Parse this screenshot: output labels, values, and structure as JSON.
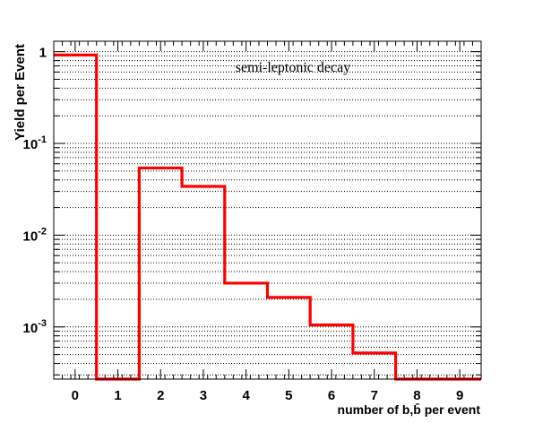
{
  "chart_data": {
    "type": "histogram",
    "title": "",
    "annotation": "semi-leptonic decay",
    "xlabel": "number of b,b̄ per event",
    "ylabel": "Yield per Event",
    "xlim": [
      -0.5,
      9.5
    ],
    "ylim": [
      0.00027,
      1.3
    ],
    "yscale": "log",
    "grid": "horizontal dotted",
    "x_ticks": [
      "0",
      "1",
      "2",
      "3",
      "4",
      "5",
      "6",
      "7",
      "8",
      "9"
    ],
    "y_ticks": [
      {
        "value": 1,
        "base": "1",
        "exp": ""
      },
      {
        "value": 0.1,
        "base": "10",
        "exp": "-1"
      },
      {
        "value": 0.01,
        "base": "10",
        "exp": "-2"
      },
      {
        "value": 0.001,
        "base": "10",
        "exp": "-3"
      }
    ],
    "series": [
      {
        "color": "#ff0000",
        "bins": [
          {
            "x": 0,
            "value": 0.92
          },
          {
            "x": 1,
            "value": 0
          },
          {
            "x": 2,
            "value": 0.054
          },
          {
            "x": 3,
            "value": 0.034
          },
          {
            "x": 4,
            "value": 0.003
          },
          {
            "x": 5,
            "value": 0.0021
          },
          {
            "x": 6,
            "value": 0.00105
          },
          {
            "x": 7,
            "value": 0.00052
          },
          {
            "x": 8,
            "value": 0
          },
          {
            "x": 9,
            "value": 0
          }
        ]
      }
    ]
  }
}
